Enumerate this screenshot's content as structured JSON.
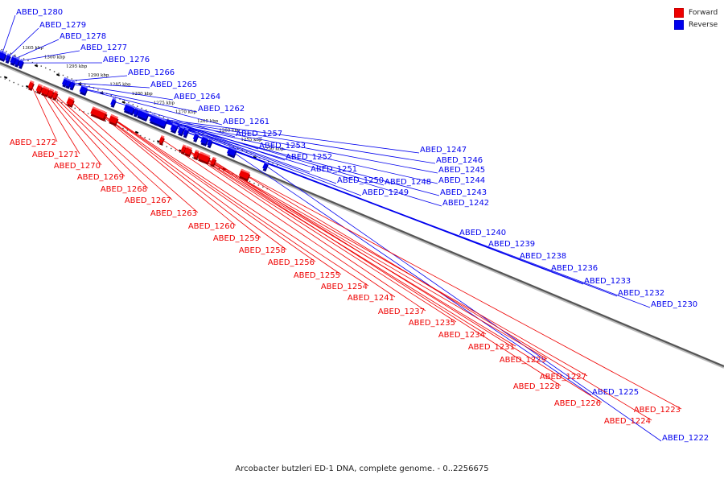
{
  "legend": {
    "forward_label": "Forward",
    "reverse_label": "Reverse",
    "forward_color": "#ee0000",
    "reverse_color": "#0000ee"
  },
  "caption": "Arcobacter butzleri ED-1 DNA, complete genome. - 0..2256675",
  "scale_labels": [
    "1305 kbp",
    "1300 kbp",
    "1295 kbp",
    "1290 kbp",
    "1285 kbp",
    "1280 kbp",
    "1275 kbp",
    "1270 kbp",
    "1265 kbp",
    "1260 kbp",
    "1255 kbp",
    "1250 kbp"
  ],
  "reverse_genes": [
    {
      "id": "ABED_1280",
      "kbp": 1307.6,
      "len": 1.5
    },
    {
      "id": "ABED_1279",
      "kbp": 1306.2,
      "len": 0.3
    },
    {
      "id": "ABED_1278",
      "kbp": 1305.0,
      "len": 0.9
    },
    {
      "id": "ABED_1277",
      "kbp": 1304.1,
      "len": 0.6
    },
    {
      "id": "ABED_1276",
      "kbp": 1303.2,
      "len": 0.3
    },
    {
      "id": "ABED_1266",
      "kbp": 1293.2,
      "len": 0.3
    },
    {
      "id": "ABED_1265",
      "kbp": 1292.4,
      "len": 0.8
    },
    {
      "id": "ABED_1264",
      "kbp": 1291.5,
      "len": 0.3
    },
    {
      "id": "ABED_1262",
      "kbp": 1289.2,
      "len": 0.3
    },
    {
      "id": "ABED_1261",
      "kbp": 1288.6,
      "len": 0.5
    },
    {
      "id": "ABED_1257",
      "kbp": 1282.1,
      "len": 0.2
    },
    {
      "id": "ABED_1253",
      "kbp": 1279.1,
      "len": 0.3
    },
    {
      "id": "ABED_1252",
      "kbp": 1278.5,
      "len": 0.2
    },
    {
      "id": "ABED_1251",
      "kbp": 1277.8,
      "len": 0.3
    },
    {
      "id": "ABED_1250",
      "kbp": 1276.9,
      "len": 0.5
    },
    {
      "id": "ABED_1249",
      "kbp": 1276.1,
      "len": 0.3
    },
    {
      "id": "ABED_1248",
      "kbp": 1275.1,
      "len": 1.6
    },
    {
      "id": "ABED_1247",
      "kbp": 1273.2,
      "len": 0.2
    },
    {
      "id": "ABED_1246",
      "kbp": 1272.7,
      "len": 0.2
    },
    {
      "id": "ABED_1245",
      "kbp": 1272.2,
      "len": 0.3
    },
    {
      "id": "ABED_1244",
      "kbp": 1271.6,
      "len": 0.4
    },
    {
      "id": "ABED_1243",
      "kbp": 1271.0,
      "len": 0.3
    },
    {
      "id": "ABED_1242",
      "kbp": 1270.5,
      "len": 0.2
    },
    {
      "id": "ABED_1240",
      "kbp": 1268.2,
      "len": 1.1
    },
    {
      "id": "ABED_1239",
      "kbp": 1266.6,
      "len": 0.9
    },
    {
      "id": "ABED_1238",
      "kbp": 1265.5,
      "len": 0.2
    },
    {
      "id": "ABED_1236",
      "kbp": 1263.2,
      "len": 0.6
    },
    {
      "id": "ABED_1233",
      "kbp": 1261.5,
      "len": 0.2
    },
    {
      "id": "ABED_1232",
      "kbp": 1261.0,
      "len": 0.2
    },
    {
      "id": "ABED_1230",
      "kbp": 1260.0,
      "len": 0.3
    },
    {
      "id": "ABED_1225",
      "kbp": 1255.0,
      "len": 1.6
    },
    {
      "id": "ABED_1222",
      "kbp": 1247.3,
      "len": 0.4
    }
  ],
  "forward_genes": [
    {
      "id": "ABED_1272",
      "kbp": 1299.5,
      "len": 0.8
    },
    {
      "id": "ABED_1271",
      "kbp": 1297.6,
      "len": 0.9
    },
    {
      "id": "ABED_1270",
      "kbp": 1296.6,
      "len": 0.7
    },
    {
      "id": "ABED_1269",
      "kbp": 1295.9,
      "len": 0.3
    },
    {
      "id": "ABED_1268",
      "kbp": 1295.0,
      "len": 0.9
    },
    {
      "id": "ABED_1267",
      "kbp": 1294.0,
      "len": 0.3
    },
    {
      "id": "ABED_1263",
      "kbp": 1290.5,
      "len": 1.2
    },
    {
      "id": "ABED_1260",
      "kbp": 1284.0,
      "len": 3.2
    },
    {
      "id": "ABED_1259",
      "kbp": 1283.3,
      "len": 0.2
    },
    {
      "id": "ABED_1258",
      "kbp": 1283.0,
      "len": 0.15
    },
    {
      "id": "ABED_1256",
      "kbp": 1281.1,
      "len": 0.5
    },
    {
      "id": "ABED_1255",
      "kbp": 1280.6,
      "len": 0.3
    },
    {
      "id": "ABED_1254",
      "kbp": 1280.2,
      "len": 0.2
    },
    {
      "id": "ABED_1241",
      "kbp": 1269.6,
      "len": 0.2
    },
    {
      "id": "ABED_1237",
      "kbp": 1264.6,
      "len": 0.2
    },
    {
      "id": "ABED_1235",
      "kbp": 1263.8,
      "len": 0.2
    },
    {
      "id": "ABED_1234",
      "kbp": 1263.3,
      "len": 0.3
    },
    {
      "id": "ABED_1231",
      "kbp": 1261.7,
      "len": 0.8
    },
    {
      "id": "ABED_1229",
      "kbp": 1260.7,
      "len": 0.2
    },
    {
      "id": "ABED_1228",
      "kbp": 1260.2,
      "len": 0.5
    },
    {
      "id": "ABED_1227",
      "kbp": 1259.6,
      "len": 1.6
    },
    {
      "id": "ABED_1226",
      "kbp": 1257.8,
      "len": 0.7
    },
    {
      "id": "ABED_1224",
      "kbp": 1251.3,
      "len": 0.7
    },
    {
      "id": "ABED_1223",
      "kbp": 1250.6,
      "len": 1.8
    }
  ]
}
